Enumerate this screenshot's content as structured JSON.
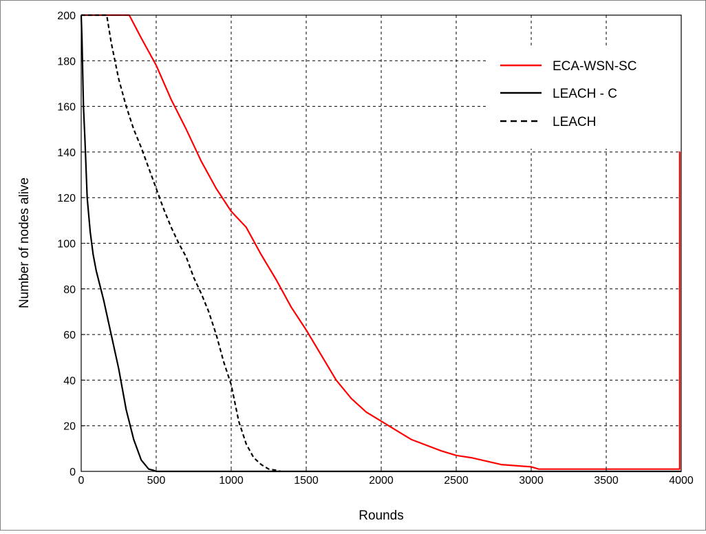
{
  "chart_data": {
    "type": "line",
    "title": "",
    "xlabel": "Rounds",
    "ylabel": "Number of nodes alive",
    "xlim": [
      0,
      4000
    ],
    "ylim": [
      0,
      200
    ],
    "xticks": [
      0,
      500,
      1000,
      1500,
      2000,
      2500,
      3000,
      3500,
      4000
    ],
    "yticks": [
      0,
      20,
      40,
      60,
      80,
      100,
      120,
      140,
      160,
      180,
      200
    ],
    "xtick_labels": [
      "0",
      "500",
      "1000",
      "1500",
      "2000",
      "2500",
      "3000",
      "3500",
      "4000"
    ],
    "ytick_labels": [
      "0",
      "20",
      "40",
      "60",
      "80",
      "100",
      "120",
      "140",
      "160",
      "180",
      "200"
    ],
    "grid": true,
    "legend_position": "top-right",
    "series": [
      {
        "name": "ECA-WSN-SC",
        "color": "#ff0000",
        "style": "solid",
        "x": [
          0,
          320,
          400,
          500,
          600,
          700,
          800,
          900,
          1000,
          1100,
          1200,
          1300,
          1400,
          1500,
          1600,
          1700,
          1800,
          1900,
          2000,
          2200,
          2400,
          2500,
          2600,
          2800,
          3000,
          3050,
          3500,
          3900,
          3990,
          3990,
          3992
        ],
        "y": [
          200,
          200,
          190,
          178,
          163,
          150,
          136,
          124,
          114,
          107,
          95,
          84,
          72,
          62,
          51,
          40,
          32,
          26,
          22,
          14,
          9,
          7,
          6,
          3,
          2,
          1,
          1,
          1,
          1,
          140,
          140
        ]
      },
      {
        "name": "LEACH - C",
        "color": "#000000",
        "style": "solid",
        "x": [
          0,
          5,
          15,
          25,
          40,
          60,
          80,
          100,
          150,
          200,
          250,
          300,
          350,
          400,
          450,
          480,
          500,
          600,
          1000,
          2000,
          3000,
          4000
        ],
        "y": [
          200,
          190,
          160,
          145,
          120,
          105,
          95,
          88,
          75,
          60,
          45,
          27,
          14,
          5,
          1,
          0.5,
          0,
          0,
          0,
          0,
          0,
          0
        ]
      },
      {
        "name": "LEACH",
        "color": "#000000",
        "style": "dashed",
        "x": [
          0,
          170,
          200,
          250,
          300,
          350,
          400,
          450,
          500,
          550,
          600,
          650,
          700,
          750,
          800,
          850,
          900,
          950,
          1000,
          1050,
          1100,
          1150,
          1200,
          1250,
          1300,
          1330
        ],
        "y": [
          200,
          200,
          188,
          172,
          160,
          150,
          142,
          133,
          124,
          115,
          107,
          100,
          94,
          85,
          78,
          70,
          60,
          48,
          38,
          22,
          12,
          6,
          3,
          1,
          0.5,
          0
        ]
      }
    ]
  }
}
